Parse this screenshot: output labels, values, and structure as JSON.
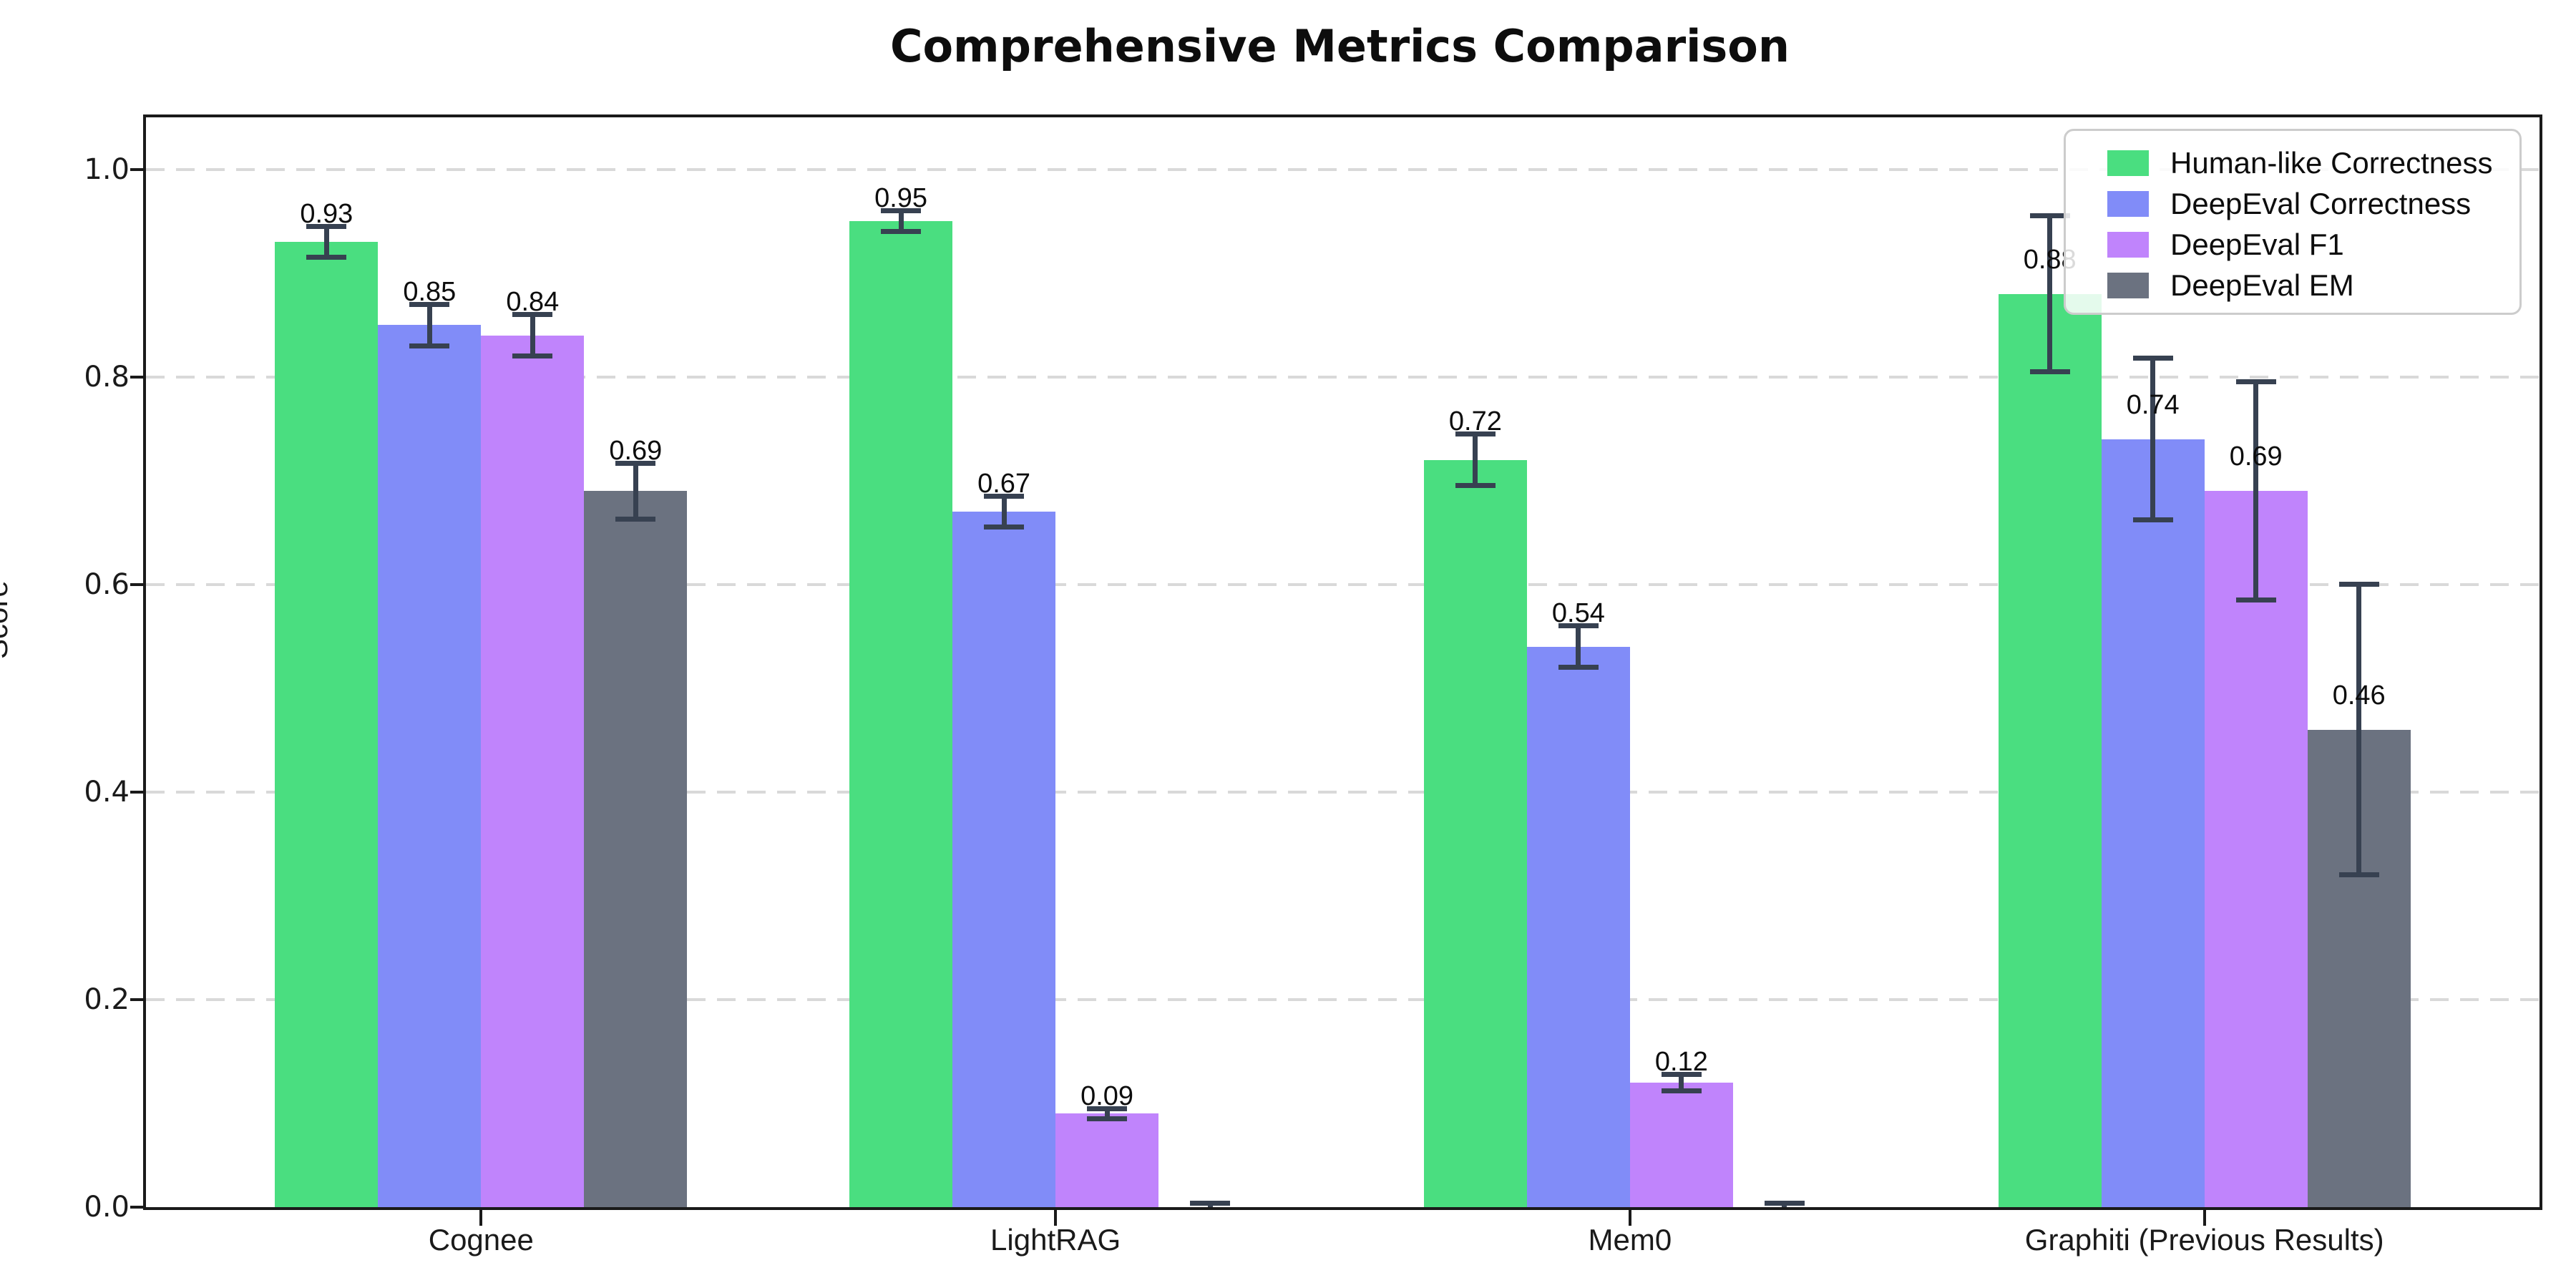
{
  "chart_data": {
    "type": "bar",
    "title": "Comprehensive Metrics Comparison",
    "ylabel": "Score",
    "xlabel": "",
    "categories": [
      "Cognee",
      "LightRAG",
      "Mem0",
      "Graphiti (Previous Results)"
    ],
    "series": [
      {
        "name": "Human-like Correctness",
        "color": "#4ade80",
        "values": [
          0.93,
          0.95,
          0.72,
          0.88
        ],
        "errors": [
          0.015,
          0.01,
          0.025,
          0.075
        ],
        "labels": [
          "0.93",
          "0.95",
          "0.72",
          "0.88"
        ]
      },
      {
        "name": "DeepEval Correctness",
        "color": "#818cf8",
        "values": [
          0.85,
          0.67,
          0.54,
          0.74
        ],
        "errors": [
          0.02,
          0.015,
          0.02,
          0.078
        ],
        "labels": [
          "0.85",
          "0.67",
          "0.54",
          "0.74"
        ]
      },
      {
        "name": "DeepEval F1",
        "color": "#c084fc",
        "values": [
          0.84,
          0.09,
          0.12,
          0.69
        ],
        "errors": [
          0.02,
          0.005,
          0.008,
          0.105
        ],
        "labels": [
          "0.84",
          "0.09",
          "0.12",
          "0.69"
        ]
      },
      {
        "name": "DeepEval EM",
        "color": "#6b7280",
        "values": [
          0.69,
          0.0,
          0.0,
          0.46
        ],
        "errors": [
          0.027,
          0.004,
          0.004,
          0.14
        ],
        "labels": [
          "0.69",
          null,
          null,
          "0.46"
        ]
      }
    ],
    "yticks": [
      "0.0",
      "0.2",
      "0.4",
      "0.6",
      "0.8",
      "1.0"
    ],
    "ytick_values": [
      0.0,
      0.2,
      0.4,
      0.6,
      0.8,
      1.0
    ],
    "ylim": [
      0,
      1.05
    ],
    "grid": "horizontal dashed at 0.2 intervals",
    "legend_position": "upper right",
    "error_bar_color": "#374151",
    "spine_color": "#1a1a1a",
    "gridline_color": "#d9d9d9"
  }
}
